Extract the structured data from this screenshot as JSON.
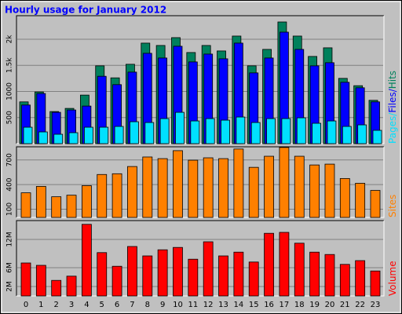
{
  "chart_data": [
    {
      "type": "bar",
      "title": "Hourly usage for January 2012",
      "series": [
        {
          "name": "Hits",
          "color": "#00805c",
          "values": [
            800,
            990,
            615,
            675,
            930,
            1490,
            1260,
            1520,
            1925,
            1880,
            2030,
            1745,
            1880,
            1775,
            2060,
            1490,
            1805,
            2330,
            2060,
            1670,
            1835,
            1250,
            1110,
            830
          ]
        },
        {
          "name": "Files",
          "color": "#0000ff",
          "values": [
            740,
            960,
            600,
            645,
            720,
            1290,
            1130,
            1370,
            1730,
            1640,
            1865,
            1565,
            1715,
            1625,
            1925,
            1355,
            1640,
            2135,
            1805,
            1490,
            1550,
            1175,
            1070,
            800
          ]
        },
        {
          "name": "Pages",
          "color": "#00e0ff",
          "values": [
            315,
            225,
            180,
            210,
            315,
            315,
            330,
            420,
            405,
            480,
            600,
            435,
            480,
            450,
            510,
            405,
            480,
            480,
            495,
            390,
            435,
            330,
            360,
            255
          ]
        }
      ],
      "ylim": [
        0,
        2450
      ],
      "yticks": [
        500,
        1000,
        {
          "value": 1500,
          "label": "1.5k"
        },
        {
          "value": 2000,
          "label": "2k"
        }
      ],
      "grid": true
    },
    {
      "type": "bar",
      "series": [
        {
          "name": "Sites",
          "color": "#ff8000",
          "values": [
            300,
            378,
            252,
            271,
            387,
            523,
            532,
            620,
            736,
            716,
            813,
            697,
            726,
            716,
            833,
            610,
            745,
            852,
            745,
            639,
            649,
            474,
            416,
            329
          ]
        }
      ],
      "ylim": [
        0,
        860
      ],
      "yticks": [
        100,
        400,
        700
      ],
      "grid": true
    },
    {
      "type": "bar",
      "categories": [
        "0",
        "1",
        "2",
        "3",
        "4",
        "5",
        "6",
        "7",
        "8",
        "9",
        "10",
        "11",
        "12",
        "13",
        "14",
        "15",
        "16",
        "17",
        "18",
        "19",
        "20",
        "21",
        "22",
        "23"
      ],
      "series": [
        {
          "name": "Volume",
          "color": "#ff0000",
          "values": [
            7.0,
            6.5,
            3.3,
            4.2,
            15.2,
            9.2,
            6.3,
            10.5,
            8.5,
            9.8,
            10.3,
            7.8,
            11.5,
            8.5,
            9.3,
            7.2,
            13.3,
            13.5,
            11.2,
            9.3,
            8.8,
            6.7,
            7.5,
            5.3
          ]
        }
      ],
      "ylim": [
        0,
        16
      ],
      "yticks": [
        {
          "value": 2,
          "label": "2M"
        },
        {
          "value": 6,
          "label": "6M"
        },
        {
          "value": 12,
          "label": "12M"
        }
      ],
      "grid": true
    }
  ]
}
